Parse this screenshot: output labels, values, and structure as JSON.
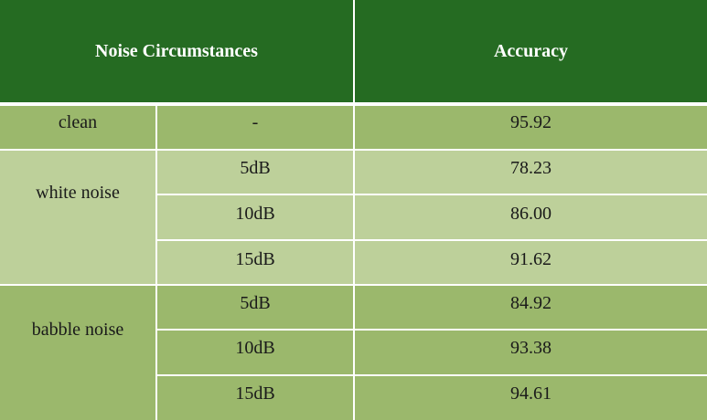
{
  "table": {
    "headers": {
      "noise": "Noise Circumstances",
      "accuracy": "Accuracy"
    },
    "groups": [
      {
        "label": "clean",
        "rows": [
          {
            "level": "-",
            "accuracy": "95.92"
          }
        ]
      },
      {
        "label": "white noise",
        "rows": [
          {
            "level": "5dB",
            "accuracy": "78.23"
          },
          {
            "level": "10dB",
            "accuracy": "86.00"
          },
          {
            "level": "15dB",
            "accuracy": "91.62"
          }
        ]
      },
      {
        "label": "babble noise",
        "rows": [
          {
            "level": "5dB",
            "accuracy": "84.92"
          },
          {
            "level": "10dB",
            "accuracy": "93.38"
          },
          {
            "level": "15dB",
            "accuracy": "94.61"
          }
        ]
      }
    ],
    "colors": {
      "header_bg": "#256b22",
      "dark_row": "#9bb86c",
      "light_row": "#bdd09a",
      "header_text": "#ffffff"
    }
  }
}
